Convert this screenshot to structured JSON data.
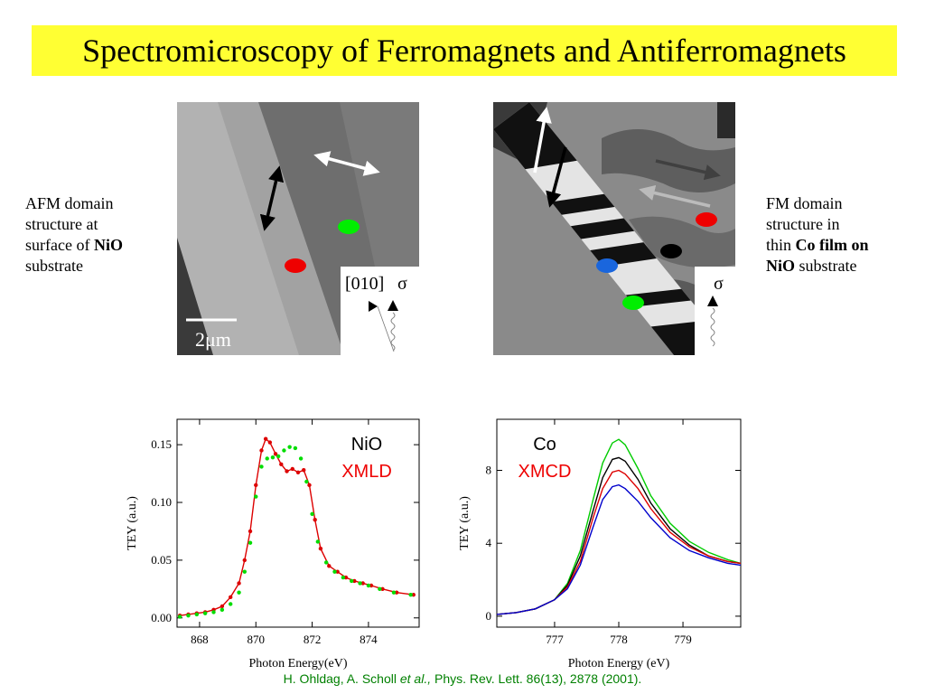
{
  "slide": {
    "title": "Spectromicroscopy of Ferromagnets and Antiferromagnets",
    "left_label": {
      "line1": "AFM domain",
      "line2": "structure at",
      "line3_pre": "surface of ",
      "line3_bold": "NiO",
      "line4": "substrate"
    },
    "right_label": {
      "line1": "FM domain",
      "line2": "structure in",
      "line3_pre": "thin ",
      "line3_bold": "Co film on",
      "line4_bold": "NiO",
      "line4_post": " substrate"
    },
    "citation": {
      "authors": "H. Ohldag, A. Scholl ",
      "etal": "et al.,",
      "ref": " Phys. Rev. Lett. 86(13), 2878 (2001)."
    }
  },
  "images": {
    "afm": {
      "scalebar_label": "2μm",
      "inset_direction": "[010]",
      "inset_polarization": "σ",
      "spot_colors": [
        "#00ee00",
        "#ee0000"
      ]
    },
    "fm": {
      "inset_polarization": "σ",
      "spot_colors": [
        "#ee0000",
        "#000000",
        "#1a66dd",
        "#00ee00"
      ]
    }
  },
  "chart_data": [
    {
      "type": "scatter",
      "annotation_element": "NiO",
      "annotation_technique": "XMLD",
      "xlabel": "Photon Energy(eV)",
      "ylabel": "TEY (a.u.)",
      "xlim": [
        867.2,
        875.8
      ],
      "ylim": [
        -0.008,
        0.172
      ],
      "xticks": [
        868,
        870,
        872,
        874
      ],
      "xtick_labels": [
        "868",
        "870",
        "872",
        "874"
      ],
      "yticks": [
        0.0,
        0.05,
        0.1,
        0.15
      ],
      "ytick_labels": [
        "0.00",
        "0.05",
        "0.10",
        "0.15"
      ],
      "series": [
        {
          "color": "#dd0000",
          "x": [
            867.3,
            867.6,
            867.9,
            868.2,
            868.5,
            868.8,
            869.1,
            869.4,
            869.6,
            869.8,
            870.0,
            870.2,
            870.35,
            870.5,
            870.7,
            870.9,
            871.1,
            871.3,
            871.5,
            871.7,
            871.9,
            872.1,
            872.3,
            872.6,
            872.9,
            873.2,
            873.5,
            873.8,
            874.1,
            874.5,
            875.0,
            875.6
          ],
          "y": [
            0.002,
            0.003,
            0.004,
            0.005,
            0.007,
            0.01,
            0.018,
            0.03,
            0.05,
            0.075,
            0.115,
            0.145,
            0.155,
            0.152,
            0.142,
            0.133,
            0.127,
            0.129,
            0.126,
            0.128,
            0.115,
            0.085,
            0.06,
            0.045,
            0.04,
            0.035,
            0.032,
            0.03,
            0.028,
            0.025,
            0.022,
            0.02
          ],
          "line": true
        },
        {
          "color": "#00dd00",
          "x": [
            867.3,
            867.6,
            867.9,
            868.2,
            868.5,
            868.8,
            869.1,
            869.4,
            869.6,
            869.8,
            870.0,
            870.2,
            870.4,
            870.6,
            870.8,
            871.0,
            871.2,
            871.4,
            871.6,
            871.8,
            872.0,
            872.2,
            872.5,
            872.8,
            873.1,
            873.4,
            873.7,
            874.0,
            874.4,
            874.9,
            875.5
          ],
          "y": [
            0.001,
            0.002,
            0.003,
            0.004,
            0.005,
            0.007,
            0.012,
            0.022,
            0.04,
            0.065,
            0.105,
            0.131,
            0.138,
            0.139,
            0.14,
            0.145,
            0.148,
            0.147,
            0.138,
            0.118,
            0.09,
            0.066,
            0.048,
            0.04,
            0.035,
            0.032,
            0.03,
            0.028,
            0.025,
            0.022,
            0.02
          ],
          "line": false
        }
      ]
    },
    {
      "type": "line",
      "annotation_element": "Co",
      "annotation_technique": "XMCD",
      "xlabel": "Photon Energy (eV)",
      "ylabel": "TEY (a.u.)",
      "xlim": [
        776.1,
        779.9
      ],
      "ylim": [
        -0.6,
        10.8
      ],
      "xticks": [
        777,
        778,
        779
      ],
      "xtick_labels": [
        "777",
        "778",
        "779"
      ],
      "yticks": [
        0,
        4,
        8
      ],
      "ytick_labels": [
        "0",
        "4",
        "8"
      ],
      "series": [
        {
          "color": "#00cc00",
          "x": [
            776.1,
            776.4,
            776.7,
            777.0,
            777.2,
            777.4,
            777.6,
            777.75,
            777.9,
            778.0,
            778.1,
            778.3,
            778.5,
            778.8,
            779.1,
            779.4,
            779.7,
            779.9
          ],
          "y": [
            0.1,
            0.2,
            0.4,
            0.9,
            1.8,
            3.6,
            6.4,
            8.4,
            9.5,
            9.7,
            9.4,
            8.1,
            6.6,
            5.1,
            4.1,
            3.5,
            3.1,
            2.9
          ]
        },
        {
          "color": "#000000",
          "x": [
            776.1,
            776.4,
            776.7,
            777.0,
            777.2,
            777.4,
            777.6,
            777.75,
            777.9,
            778.0,
            778.1,
            778.3,
            778.5,
            778.8,
            779.1,
            779.4,
            779.7,
            779.9
          ],
          "y": [
            0.1,
            0.2,
            0.4,
            0.9,
            1.7,
            3.3,
            5.8,
            7.6,
            8.6,
            8.7,
            8.5,
            7.5,
            6.2,
            4.8,
            3.9,
            3.3,
            3.0,
            2.9
          ]
        },
        {
          "color": "#dd0000",
          "x": [
            776.1,
            776.4,
            776.7,
            777.0,
            777.2,
            777.4,
            777.6,
            777.75,
            777.9,
            778.0,
            778.1,
            778.3,
            778.5,
            778.8,
            779.1,
            779.4,
            779.7,
            779.9
          ],
          "y": [
            0.1,
            0.2,
            0.4,
            0.9,
            1.6,
            3.0,
            5.4,
            7.0,
            7.9,
            8.0,
            7.8,
            7.0,
            5.9,
            4.6,
            3.8,
            3.3,
            3.0,
            2.9
          ]
        },
        {
          "color": "#0000cc",
          "x": [
            776.1,
            776.4,
            776.7,
            777.0,
            777.2,
            777.4,
            777.6,
            777.75,
            777.9,
            778.0,
            778.1,
            778.3,
            778.5,
            778.8,
            779.1,
            779.4,
            779.7,
            779.9
          ],
          "y": [
            0.1,
            0.2,
            0.4,
            0.9,
            1.5,
            2.8,
            4.9,
            6.4,
            7.1,
            7.2,
            7.0,
            6.3,
            5.4,
            4.3,
            3.6,
            3.2,
            2.9,
            2.8
          ]
        }
      ]
    }
  ]
}
